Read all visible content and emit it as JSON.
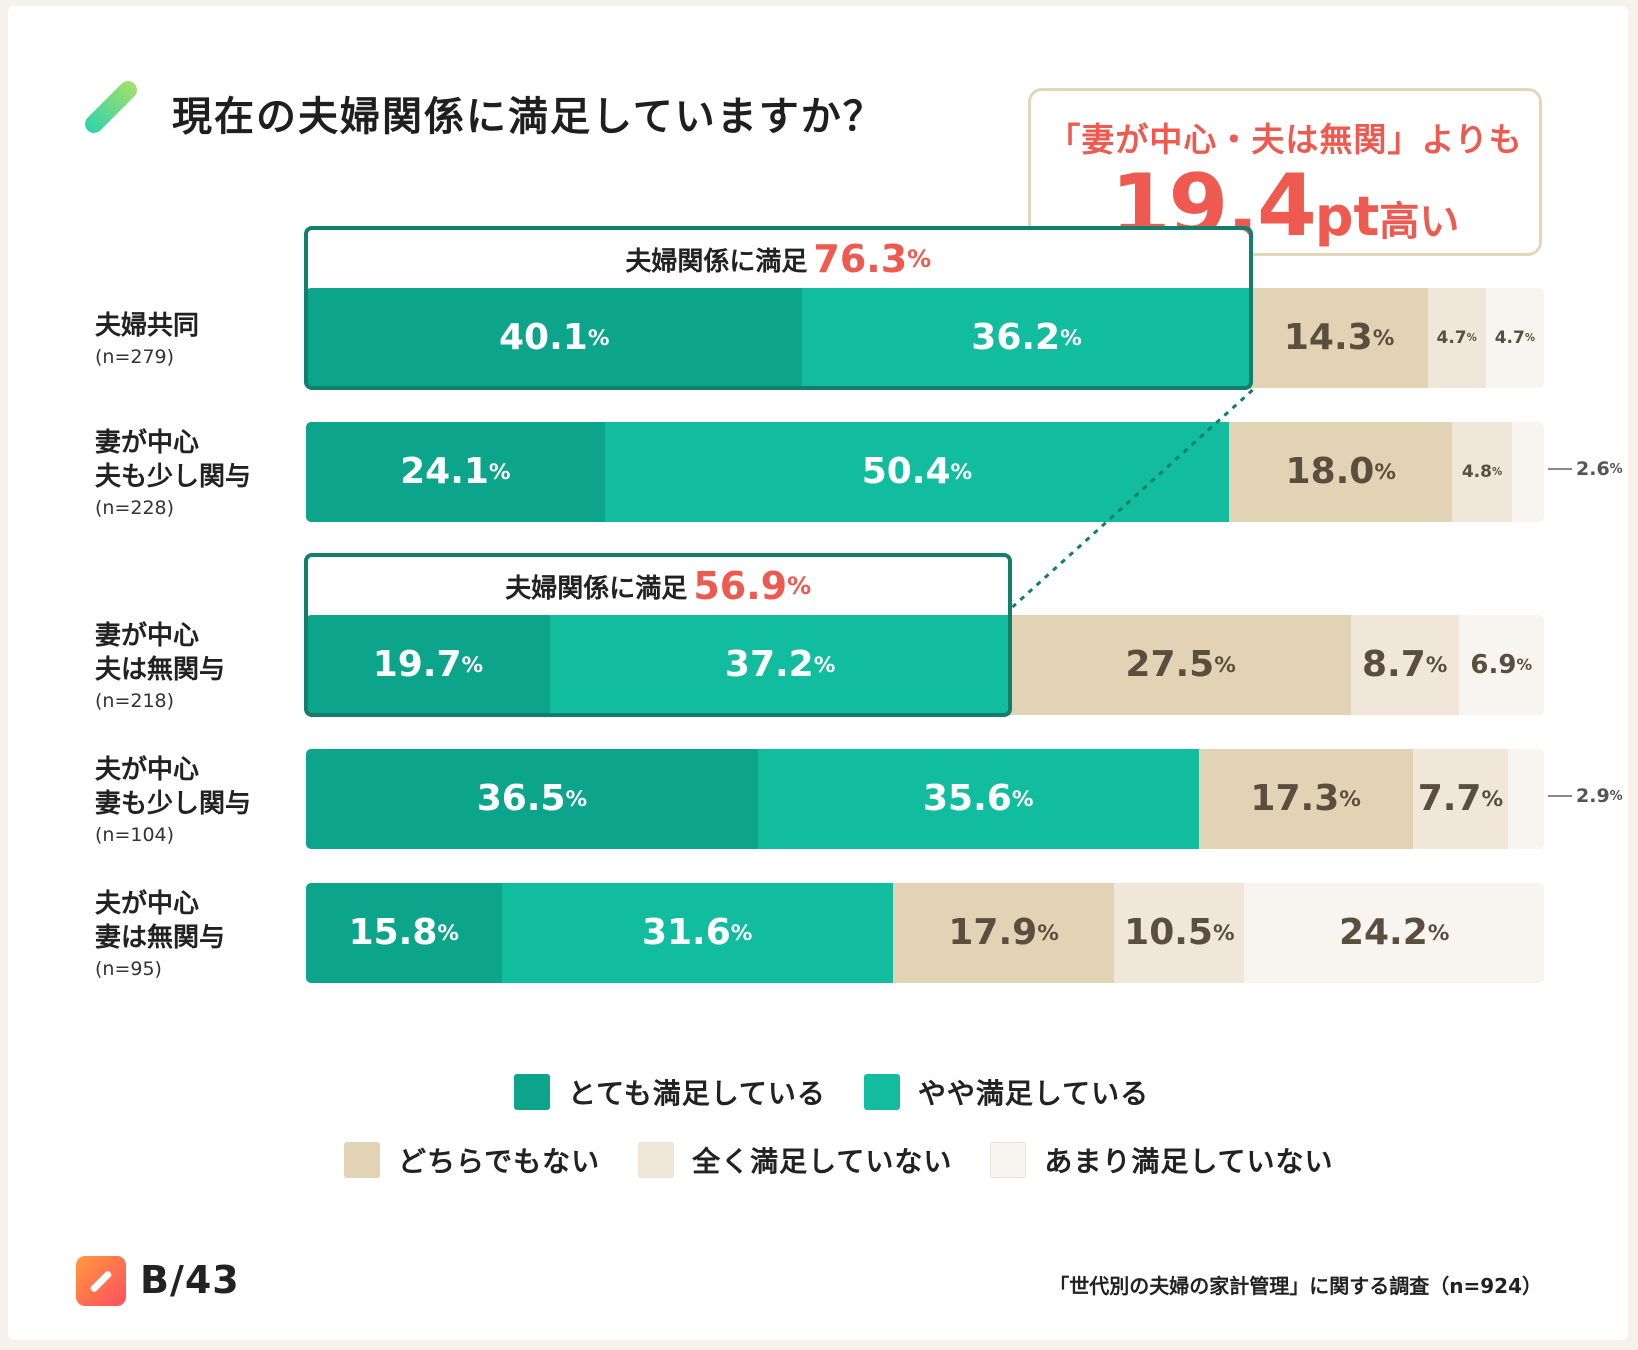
{
  "title": "現在の夫婦関係に満足していますか？",
  "callout": {
    "line1": "「妻が中心・夫は無関」よりも",
    "value": "19.4",
    "unit": "pt",
    "suffix": "高い"
  },
  "colors": {
    "very_satisfied": "#0da48c",
    "somewhat_satisfied": "#12bc9f",
    "neither": "#e3d3b5",
    "not_at_all": "#f0e7da",
    "not_very": "#f8f5f0",
    "accent": "#ee5a4f",
    "frame": "#127e6c"
  },
  "satisfaction_boxes": [
    {
      "label": "夫婦関係に満足",
      "value": "76.3",
      "pct": "%"
    },
    {
      "label": "夫婦関係に満足",
      "value": "56.9",
      "pct": "%"
    }
  ],
  "chart_data": {
    "type": "bar",
    "orientation": "horizontal-stacked-100",
    "title": "現在の夫婦関係に満足していますか？",
    "categories": [
      {
        "name": "夫婦共同",
        "name_line2": "",
        "n": "(n=279)"
      },
      {
        "name": "妻が中心",
        "name_line2": "夫も少し関与",
        "n": "(n=228)"
      },
      {
        "name": "妻が中心",
        "name_line2": "夫は無関与",
        "n": "(n=218)"
      },
      {
        "name": "夫が中心",
        "name_line2": "妻も少し関与",
        "n": "(n=104)"
      },
      {
        "name": "夫が中心",
        "name_line2": "妻は無関与",
        "n": "(n=95)"
      }
    ],
    "series": [
      {
        "name": "とても満足している",
        "key": "very_satisfied",
        "values": [
          40.1,
          24.1,
          19.7,
          36.5,
          15.8
        ]
      },
      {
        "name": "やや満足している",
        "key": "somewhat_satisfied",
        "values": [
          36.2,
          50.4,
          37.2,
          35.6,
          31.6
        ]
      },
      {
        "name": "どちらでもない",
        "key": "neither",
        "values": [
          14.3,
          18.0,
          27.5,
          17.3,
          17.9
        ]
      },
      {
        "name": "全く満足していない",
        "key": "not_at_all",
        "values": [
          4.7,
          4.8,
          8.7,
          7.7,
          10.5
        ]
      },
      {
        "name": "あまり満足していない",
        "key": "not_very",
        "values": [
          4.7,
          2.6,
          6.9,
          2.9,
          24.2
        ]
      }
    ],
    "value_labels": [
      [
        "40.1",
        "36.2",
        "14.3",
        "4.7",
        "4.7"
      ],
      [
        "24.1",
        "50.4",
        "18.0",
        "4.8",
        "2.6"
      ],
      [
        "19.7",
        "37.2",
        "27.5",
        "8.7",
        "6.9"
      ],
      [
        "36.5",
        "35.6",
        "17.3",
        "7.7",
        "2.9"
      ],
      [
        "15.8",
        "31.6",
        "17.9",
        "10.5",
        "24.2"
      ]
    ],
    "legend_rows": [
      [
        "とても満足している",
        "やや満足している"
      ],
      [
        "どちらでもない",
        "全く満足していない",
        "あまり満足していない"
      ]
    ],
    "xlim": [
      0,
      100
    ]
  },
  "footer": {
    "brand": "B/43",
    "source": "「世代別の夫婦の家計管理」に関する調査（n=924）"
  }
}
